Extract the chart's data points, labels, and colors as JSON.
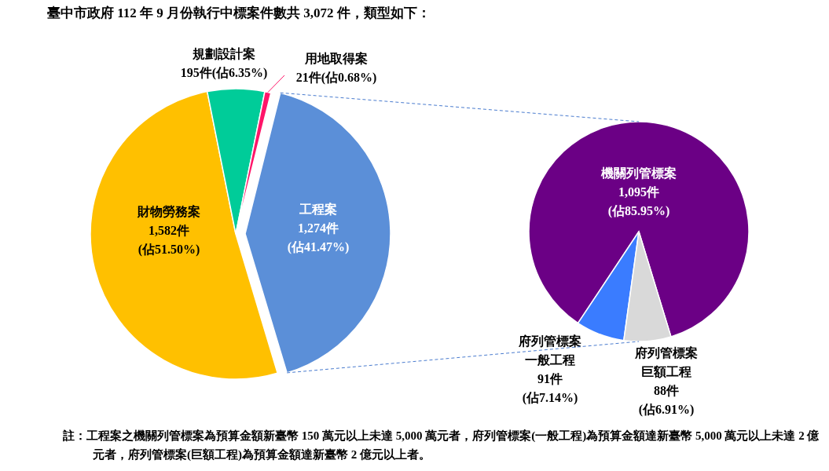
{
  "chart_data": [
    {
      "type": "pie",
      "title": "臺中市政府 112 年 9 月份執行中標案件數共 3,072 件，類型如下：",
      "categories": [
        "工程案",
        "財物勞務案",
        "規劃設計案",
        "用地取得案"
      ],
      "values": [
        1274,
        1582,
        195,
        21
      ],
      "colors": [
        "#5b8fd8",
        "#ffc000",
        "#00cc99",
        "#ff1569"
      ],
      "value_labels": [
        "1,274件\n(佔41.47%)",
        "1,582件\n(佔51.50%)",
        "195件(佔6.35%)",
        "21件(佔0.68%)"
      ],
      "annotations": [
        "註：工程案之機關列管標案為預算金額新臺幣 150 萬元以上未達 5,000 萬元者，府列管標案(一般工程)為預算金額達新臺幣 5,000 萬元以上未達 2 億元者，府列管標案(巨額工程)為預算金額達新臺幣 2 億元以上者。"
      ]
    },
    {
      "type": "pie",
      "categories": [
        "機關列管標案",
        "府列管標案一般工程",
        "府列管標案巨額工程"
      ],
      "values": [
        1095,
        91,
        88
      ],
      "colors": [
        "#6b0085",
        "#3a7cff",
        "#d9d9d9"
      ],
      "value_labels": [
        "1,095件\n(佔85.95%)",
        "91件\n(佔7.14%)",
        "88件\n(佔6.91%)"
      ]
    }
  ]
}
